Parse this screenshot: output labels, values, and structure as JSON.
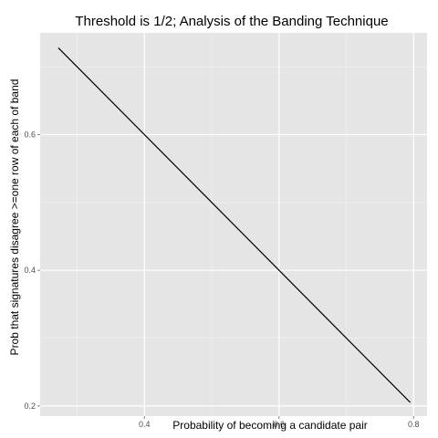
{
  "chart_data": {
    "type": "line",
    "title": "Threshold is 1/2; Analysis of the Banding Technique",
    "xlabel": "Probability of becoming a candidate pair",
    "ylabel": "Prob that signatures disagree >=one row of each of band",
    "xlim": [
      0.245,
      0.82
    ],
    "ylim": [
      0.185,
      0.75
    ],
    "x_ticks": [
      0.4,
      0.6,
      0.8
    ],
    "y_ticks": [
      0.2,
      0.4,
      0.6
    ],
    "x_tick_labels": [
      "0.4",
      "0.6",
      "0.8"
    ],
    "y_tick_labels": [
      "0.2",
      "0.4",
      "0.6"
    ],
    "grid": true,
    "legend": "none",
    "series": [
      {
        "x": [
          0.272,
          0.795
        ],
        "y": [
          0.728,
          0.205
        ],
        "color": "#000000"
      }
    ],
    "colors": {
      "panel": "#e5e5e5",
      "grid_major": "#ffffff",
      "grid_minor": "#f2f2f2",
      "line": "#000000"
    }
  }
}
